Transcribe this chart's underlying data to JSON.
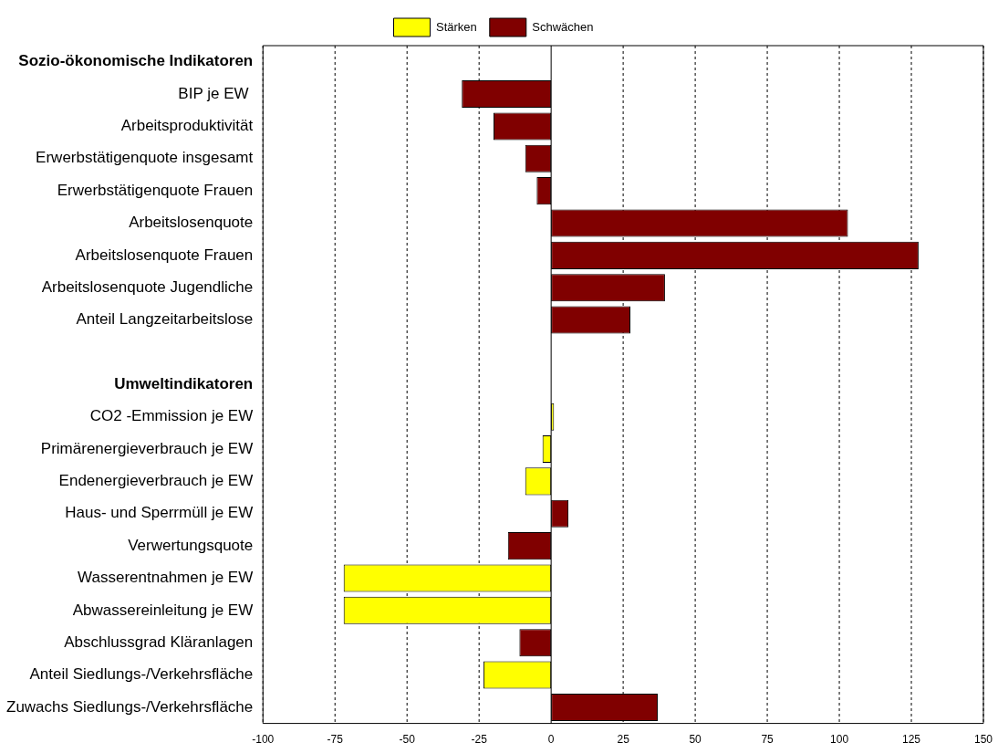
{
  "chart_data": {
    "type": "bar",
    "orientation": "horizontal",
    "stacked": true,
    "categories": [
      "Sozio-ökonomische Indikatoren",
      "BIP je EW ",
      "Arbeitsproduktivität",
      "Erwerbstätigenquote insgesamt",
      "Erwerbstätigenquote Frauen",
      "Arbeitslosenquote",
      "Arbeitslosenquote Frauen",
      "Arbeitslosenquote Jugendliche",
      "Anteil Langzeitarbeitslose",
      null,
      "Umweltindikatoren",
      "CO2 -Emmission je EW",
      "Primärenergieverbrauch je EW",
      "Endenergieverbrauch je EW",
      "Haus- und Sperrmüll je EW",
      "Verwertungsquote",
      "Wasserentnahmen je EW",
      "Abwassereinleitung je EW",
      "Abschlussgrad Kläranlagen",
      "Anteil Siedlungs-/Verkehrsfläche",
      "Zuwachs Siedlungs-/Verkehrsfläche"
    ],
    "series": [
      {
        "name": "Stärken",
        "color": "#ffff00",
        "values": [
          null,
          null,
          null,
          null,
          null,
          null,
          null,
          null,
          null,
          null,
          null,
          1,
          -3,
          -9,
          null,
          null,
          -72,
          -72,
          null,
          -23.5,
          null
        ]
      },
      {
        "name": "Schwächen",
        "color": "#800000",
        "values": [
          null,
          -31,
          -20,
          -9,
          -5,
          103,
          127.5,
          39.5,
          27.5,
          null,
          null,
          null,
          null,
          null,
          6,
          -15,
          null,
          null,
          -11,
          null,
          37
        ]
      }
    ],
    "xlim": [
      -100,
      150
    ],
    "xticks": [
      -100,
      -75,
      -50,
      -25,
      0,
      25,
      50,
      75,
      100,
      125,
      150
    ],
    "grid": "x",
    "legend": "top"
  }
}
